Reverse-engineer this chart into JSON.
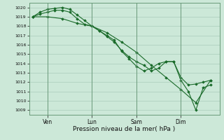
{
  "title": "",
  "xlabel": "Pression niveau de la mer( hPa )",
  "ylabel": "",
  "background_color": "#cce8d8",
  "grid_color": "#aaccbb",
  "line_color": "#1a6b2a",
  "ylim": [
    1008.5,
    1020.5
  ],
  "yticks": [
    1009,
    1010,
    1011,
    1012,
    1013,
    1014,
    1015,
    1016,
    1017,
    1018,
    1019,
    1020
  ],
  "x_tick_labels": [
    "Ven",
    "Lun",
    "Sam",
    "Dim"
  ],
  "x_tick_positions": [
    0.083,
    0.333,
    0.583,
    0.833
  ],
  "series1_x": [
    0.0,
    0.042,
    0.083,
    0.125,
    0.167,
    0.208,
    0.25,
    0.292,
    0.333,
    0.375,
    0.417,
    0.458,
    0.5,
    0.542,
    0.583,
    0.625,
    0.667,
    0.708,
    0.75,
    0.792,
    0.833,
    0.875,
    0.917,
    0.958,
    1.0
  ],
  "series1_y": [
    1019.0,
    1019.3,
    1019.5,
    1019.7,
    1019.7,
    1019.5,
    1018.8,
    1018.2,
    1018.0,
    1017.5,
    1016.9,
    1016.3,
    1015.4,
    1014.7,
    1014.2,
    1013.8,
    1013.2,
    1013.5,
    1014.2,
    1014.2,
    1012.2,
    1011.0,
    1009.0,
    1011.4,
    1011.7
  ],
  "series2_x": [
    0.0,
    0.042,
    0.083,
    0.125,
    0.167,
    0.208,
    0.25,
    0.292,
    0.333,
    0.375,
    0.417,
    0.458,
    0.5,
    0.542,
    0.583,
    0.625,
    0.667,
    0.708,
    0.75,
    0.792,
    0.833,
    0.875,
    0.917,
    0.958,
    1.0
  ],
  "series2_y": [
    1019.0,
    1019.5,
    1019.8,
    1019.9,
    1020.0,
    1019.8,
    1019.2,
    1018.6,
    1018.0,
    1017.5,
    1017.0,
    1016.5,
    1015.3,
    1014.5,
    1013.7,
    1013.2,
    1013.5,
    1014.0,
    1014.2,
    1014.2,
    1012.5,
    1011.7,
    1011.8,
    1012.0,
    1012.2
  ],
  "series3_x": [
    0.0,
    0.083,
    0.167,
    0.25,
    0.333,
    0.417,
    0.5,
    0.583,
    0.667,
    0.75,
    0.833,
    0.917,
    1.0
  ],
  "series3_y": [
    1019.0,
    1019.0,
    1018.8,
    1018.3,
    1018.0,
    1017.3,
    1016.3,
    1015.2,
    1013.8,
    1012.5,
    1011.2,
    1009.8,
    1012.2
  ]
}
